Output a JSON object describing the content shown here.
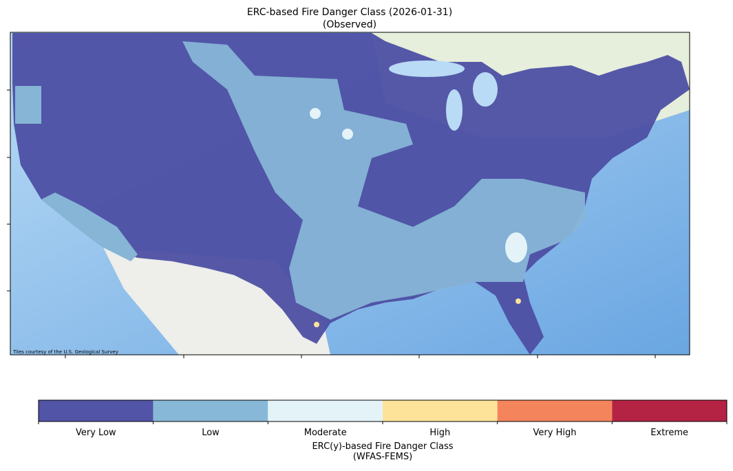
{
  "title": [
    "ERC-based Fire Danger Class (2026-01-31)",
    "(Observed)"
  ],
  "map": {
    "attribution": "Tiles courtesy of the U.S. Geological Survey"
  },
  "legend": {
    "title": [
      "ERC(y)-based Fire Danger Class",
      "(WFAS-FEMS)"
    ],
    "classes": [
      {
        "name": "Very Low",
        "color": "#5254a8"
      },
      {
        "name": "Low",
        "color": "#88b8d8"
      },
      {
        "name": "Moderate",
        "color": "#e4f3f8"
      },
      {
        "name": "High",
        "color": "#fde39a"
      },
      {
        "name": "Very High",
        "color": "#f4845c"
      },
      {
        "name": "Extreme",
        "color": "#b52344"
      }
    ]
  }
}
